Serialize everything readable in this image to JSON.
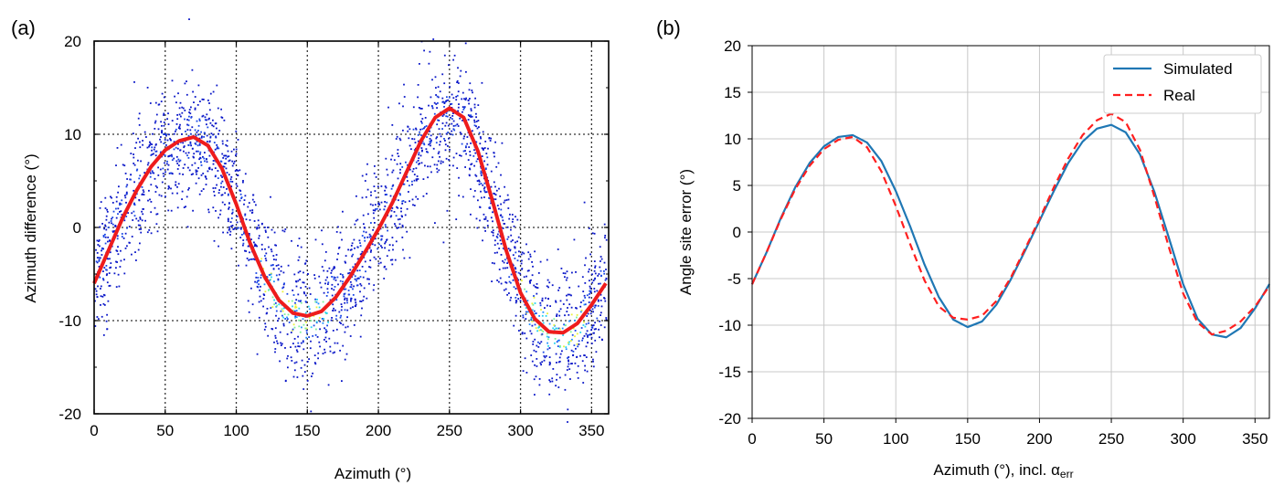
{
  "chart_data": [
    {
      "panel_label": "(a)",
      "type": "scatter",
      "xlabel": "Azimuth (°)",
      "ylabel": "Azimuth difference (°)",
      "xlim": [
        0,
        362
      ],
      "ylim": [
        -20,
        20
      ],
      "xticks": [
        0,
        50,
        100,
        150,
        200,
        250,
        300,
        350
      ],
      "yticks": [
        -20,
        -10,
        0,
        10,
        20
      ],
      "grid": "dotted",
      "legend": "none",
      "series": [
        {
          "kind": "density-scatter",
          "colormap": "jet",
          "point_color": "#0a17c8",
          "spread_deg": 3,
          "x": [
            0,
            10,
            20,
            30,
            40,
            50,
            60,
            70,
            80,
            90,
            100,
            110,
            120,
            130,
            140,
            150,
            160,
            170,
            180,
            190,
            200,
            210,
            220,
            230,
            240,
            250,
            260,
            270,
            280,
            290,
            300,
            310,
            320,
            330,
            340,
            350,
            360
          ],
          "y": [
            -6,
            -2,
            1.5,
            4,
            6.5,
            8,
            9,
            9.5,
            8.5,
            6,
            2,
            -2,
            -5.5,
            -8,
            -9.5,
            -10,
            -9,
            -7.5,
            -5,
            -2.5,
            0,
            3,
            6.5,
            9.5,
            11.5,
            12.5,
            11,
            8,
            2.5,
            -2.5,
            -7,
            -9.5,
            -11,
            -11.5,
            -10.5,
            -8.5,
            -6
          ]
        },
        {
          "kind": "fit",
          "color": "#ee1c1c",
          "x": [
            0,
            10,
            20,
            30,
            40,
            50,
            60,
            70,
            80,
            90,
            100,
            110,
            120,
            130,
            140,
            150,
            160,
            170,
            180,
            190,
            200,
            210,
            220,
            230,
            240,
            250,
            260,
            270,
            280,
            290,
            300,
            310,
            320,
            330,
            340,
            350,
            360
          ],
          "y": [
            -6,
            -2.5,
            1,
            4,
            6.5,
            8.3,
            9.3,
            9.7,
            8.8,
            6.3,
            2.5,
            -1.8,
            -5.3,
            -7.8,
            -9.2,
            -9.5,
            -9,
            -7.5,
            -5.3,
            -2.8,
            -0.2,
            2.7,
            6,
            9.3,
            11.8,
            12.8,
            11.8,
            8.2,
            3,
            -2.5,
            -7,
            -9.8,
            -11.2,
            -11.3,
            -10.3,
            -8.3,
            -6
          ]
        }
      ]
    },
    {
      "panel_label": "(b)",
      "type": "line",
      "xlabel_main": "Azimuth (°), incl. α",
      "xlabel_sub": "err",
      "ylabel": "Angle site error (°)",
      "xlim": [
        0,
        360
      ],
      "ylim": [
        -20,
        20
      ],
      "xticks": [
        0,
        50,
        100,
        150,
        200,
        250,
        300,
        350
      ],
      "yticks": [
        -20,
        -15,
        -10,
        -5,
        0,
        5,
        10,
        15,
        20
      ],
      "grid": true,
      "legend": "top-right",
      "series": [
        {
          "name": "Simulated",
          "color": "#1f77b4",
          "dash": "solid",
          "x": [
            0,
            10,
            20,
            30,
            40,
            50,
            60,
            70,
            80,
            90,
            100,
            110,
            120,
            130,
            140,
            150,
            160,
            170,
            180,
            190,
            200,
            210,
            220,
            230,
            240,
            250,
            260,
            270,
            280,
            290,
            300,
            310,
            320,
            330,
            340,
            350,
            360
          ],
          "y": [
            -5.6,
            -2.2,
            1.5,
            4.8,
            7.4,
            9.2,
            10.2,
            10.4,
            9.6,
            7.6,
            4.4,
            0.6,
            -3.5,
            -7,
            -9.4,
            -10.2,
            -9.6,
            -7.8,
            -5.1,
            -2,
            1.2,
            4.4,
            7.4,
            9.7,
            11.1,
            11.5,
            10.7,
            8.3,
            4.3,
            -0.6,
            -5.6,
            -9.3,
            -11,
            -11.3,
            -10.3,
            -8.2,
            -5.6
          ]
        },
        {
          "name": "Real",
          "color": "#ff1f1f",
          "dash": "dashed",
          "x": [
            0,
            10,
            20,
            30,
            40,
            50,
            60,
            70,
            80,
            90,
            100,
            110,
            120,
            130,
            140,
            150,
            160,
            170,
            180,
            190,
            200,
            210,
            220,
            230,
            240,
            250,
            260,
            270,
            280,
            290,
            300,
            310,
            320,
            330,
            340,
            350,
            360
          ],
          "y": [
            -5.6,
            -2.2,
            1.4,
            4.6,
            7.1,
            8.9,
            9.9,
            10.2,
            9.1,
            6.5,
            2.8,
            -1.3,
            -5.2,
            -8,
            -9.2,
            -9.4,
            -9,
            -7.4,
            -4.9,
            -1.8,
            1.4,
            4.8,
            7.9,
            10.4,
            12,
            12.7,
            11.8,
            8.8,
            3.8,
            -1.6,
            -6.6,
            -9.7,
            -11,
            -10.6,
            -9.6,
            -8,
            -5.8
          ]
        }
      ]
    }
  ]
}
